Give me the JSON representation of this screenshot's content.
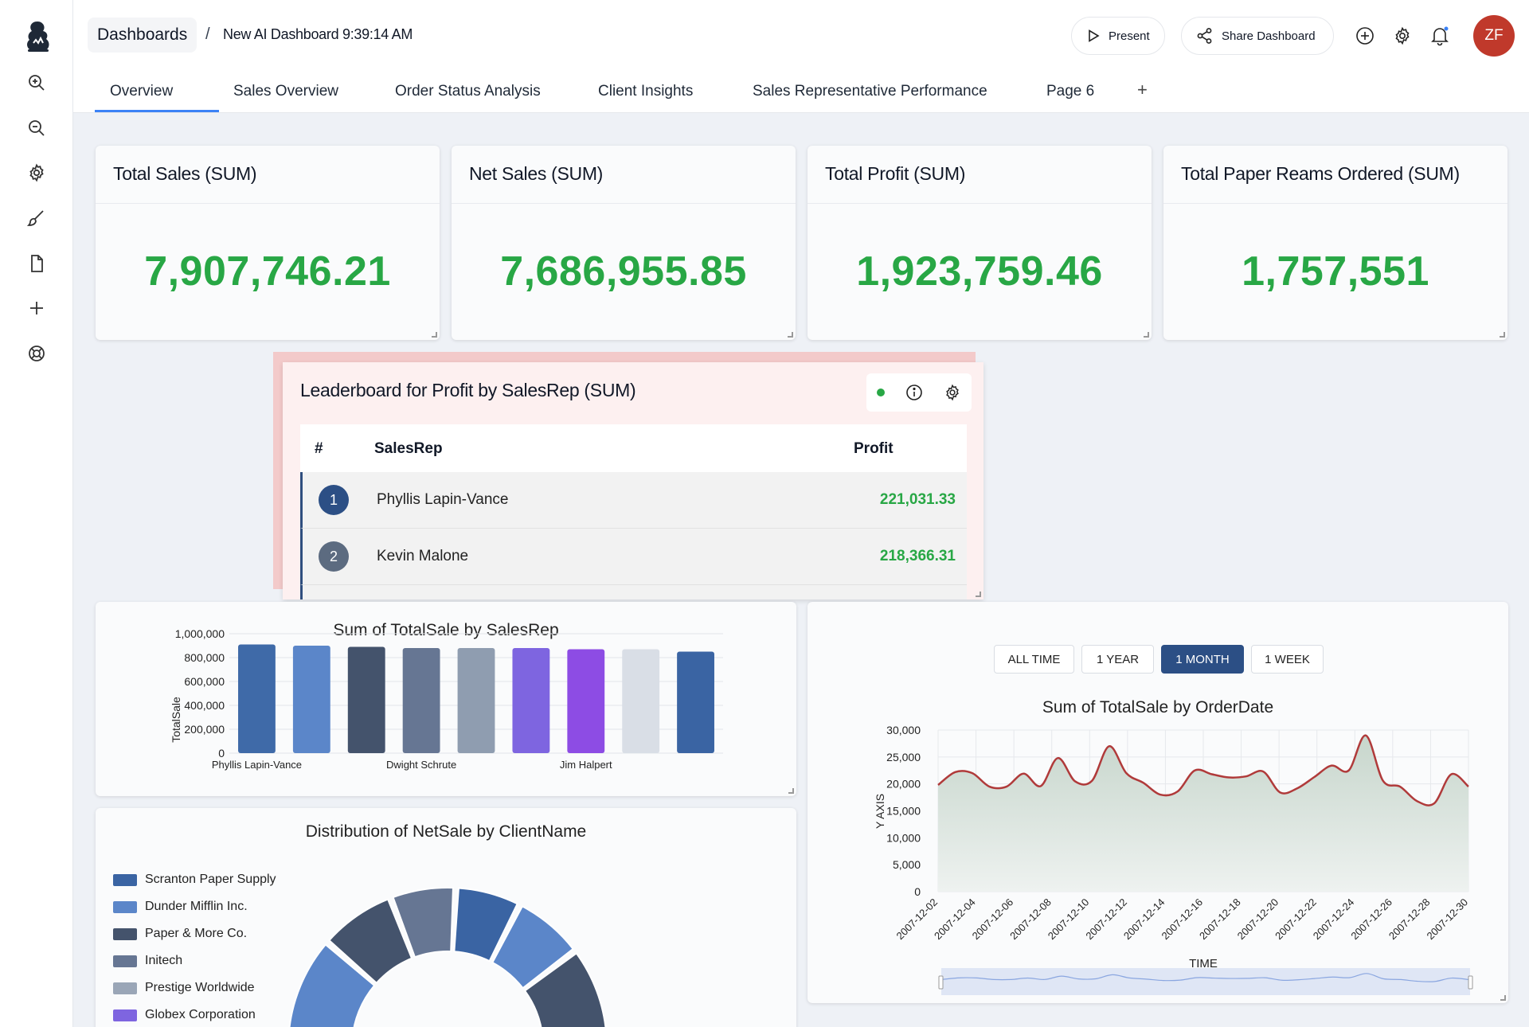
{
  "header": {
    "breadcrumb_root": "Dashboards",
    "breadcrumb_sep": "/",
    "dashboard_title": "New AI Dashboard 9:39:14 AM",
    "present_label": "Present",
    "share_label": "Share Dashboard",
    "avatar_initials": "ZF"
  },
  "sidebar": {
    "icons": [
      "zoom-in-icon",
      "zoom-out-icon",
      "gear-icon",
      "brush-icon",
      "document-icon",
      "plus-icon",
      "help-wheel-icon"
    ]
  },
  "tabs": [
    {
      "label": "Overview",
      "active": true
    },
    {
      "label": "Sales Overview"
    },
    {
      "label": "Order Status Analysis"
    },
    {
      "label": "Client Insights"
    },
    {
      "label": "Sales Representative Performance"
    },
    {
      "label": "Page 6"
    },
    {
      "label": "+"
    }
  ],
  "kpis": [
    {
      "title": "Total Sales (SUM)",
      "value": "7,907,746.21"
    },
    {
      "title": "Net Sales (SUM)",
      "value": "7,686,955.85"
    },
    {
      "title": "Total Profit (SUM)",
      "value": "1,923,759.46"
    },
    {
      "title": "Total Paper Reams Ordered (SUM)",
      "value": "1,757,551"
    }
  ],
  "leaderboard": {
    "title": "Leaderboard for Profit by SalesRep (SUM)",
    "col_rank": "#",
    "col_name": "SalesRep",
    "col_value": "Profit",
    "rows": [
      {
        "rank": "1",
        "name": "Phyllis Lapin-Vance",
        "value": "221,031.33",
        "color": "#2c4f85"
      },
      {
        "rank": "2",
        "name": "Kevin Malone",
        "value": "218,366.31",
        "color": "#5c6b80"
      }
    ]
  },
  "colors": {
    "accent": "#3b82f6",
    "positive": "#28a745",
    "dark_blue": "#2c4f85",
    "avatar": "#c0392b"
  },
  "chart_data": [
    {
      "type": "bar",
      "title": "Sum of TotalSale by SalesRep",
      "ylabel": "TotalSale",
      "xlabel": "",
      "ylim": [
        0,
        1000000
      ],
      "yticks": [
        "0",
        "200,000",
        "400,000",
        "600,000",
        "800,000",
        "1,000,000"
      ],
      "x_tick_labels": [
        {
          "index": 0,
          "label": "Phyllis Lapin-Vance"
        },
        {
          "index": 3,
          "label": "Dwight Schrute"
        },
        {
          "index": 6,
          "label": "Jim Halpert"
        }
      ],
      "values": [
        910000,
        900000,
        890000,
        880000,
        880000,
        880000,
        870000,
        870000,
        850000
      ],
      "colors": [
        "#3f6aa8",
        "#5b86c9",
        "#44536c",
        "#667693",
        "#8f9db0",
        "#7e65e0",
        "#8d4ce4",
        "#d9dee6",
        "#3a64a3"
      ]
    },
    {
      "type": "area",
      "title": "Sum of TotalSale by OrderDate",
      "ylabel": "Y AXIS",
      "xlabel": "TIME",
      "ylim": [
        0,
        30000
      ],
      "yticks": [
        "0",
        "5,000",
        "10,000",
        "15,000",
        "20,000",
        "25,000",
        "30,000"
      ],
      "range_buttons": [
        {
          "label": "ALL TIME"
        },
        {
          "label": "1 YEAR"
        },
        {
          "label": "1 MONTH",
          "active": true
        },
        {
          "label": "1 WEEK"
        }
      ],
      "x_tick_labels": [
        "2007-12-02",
        "2007-12-04",
        "2007-12-06",
        "2007-12-08",
        "2007-12-10",
        "2007-12-12",
        "2007-12-14",
        "2007-12-16",
        "2007-12-18",
        "2007-12-20",
        "2007-12-22",
        "2007-12-24",
        "2007-12-26",
        "2007-12-28",
        "2007-12-30"
      ],
      "x_start": "2007-12-02",
      "x_end": "2007-12-30",
      "values": [
        19800,
        22200,
        22000,
        19500,
        19500,
        21900,
        19600,
        24800,
        20500,
        20600,
        27000,
        22000,
        20200,
        18000,
        18600,
        22500,
        21800,
        21200,
        21400,
        22300,
        18400,
        19200,
        21300,
        23400,
        22500,
        29000,
        20600,
        19500,
        16800,
        16400,
        21800,
        19500
      ]
    },
    {
      "type": "pie",
      "title": "Distribution of NetSale by ClientName",
      "legend": [
        {
          "name": "Scranton Paper Supply",
          "color": "#3a64a3"
        },
        {
          "name": "Dunder Mifflin Inc.",
          "color": "#5b86c9"
        },
        {
          "name": "Paper & More Co.",
          "color": "#44536c"
        },
        {
          "name": "Initech",
          "color": "#667693"
        },
        {
          "name": "Prestige Worldwide",
          "color": "#9aa6b7"
        },
        {
          "name": "Globex Corporation",
          "color": "#7e65e0"
        }
      ]
    }
  ]
}
